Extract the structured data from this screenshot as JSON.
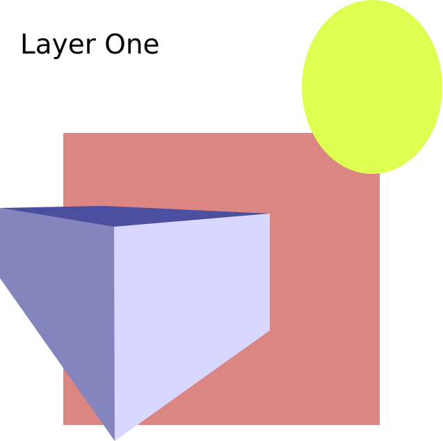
{
  "title": "Layer One",
  "colors": {
    "background": "#ffffff",
    "square": "#dc8684",
    "ellipse": "#dcff52",
    "prism_top": "#4c4f9f",
    "prism_left": "#8585bd",
    "prism_front": "#d7d7ff",
    "text": "#000000"
  },
  "shapes": [
    {
      "kind": "rectangle",
      "name": "red-square"
    },
    {
      "kind": "ellipse",
      "name": "yellow-ellipse"
    },
    {
      "kind": "prism",
      "name": "blue-prism",
      "faces": [
        "top",
        "left",
        "front"
      ]
    }
  ]
}
